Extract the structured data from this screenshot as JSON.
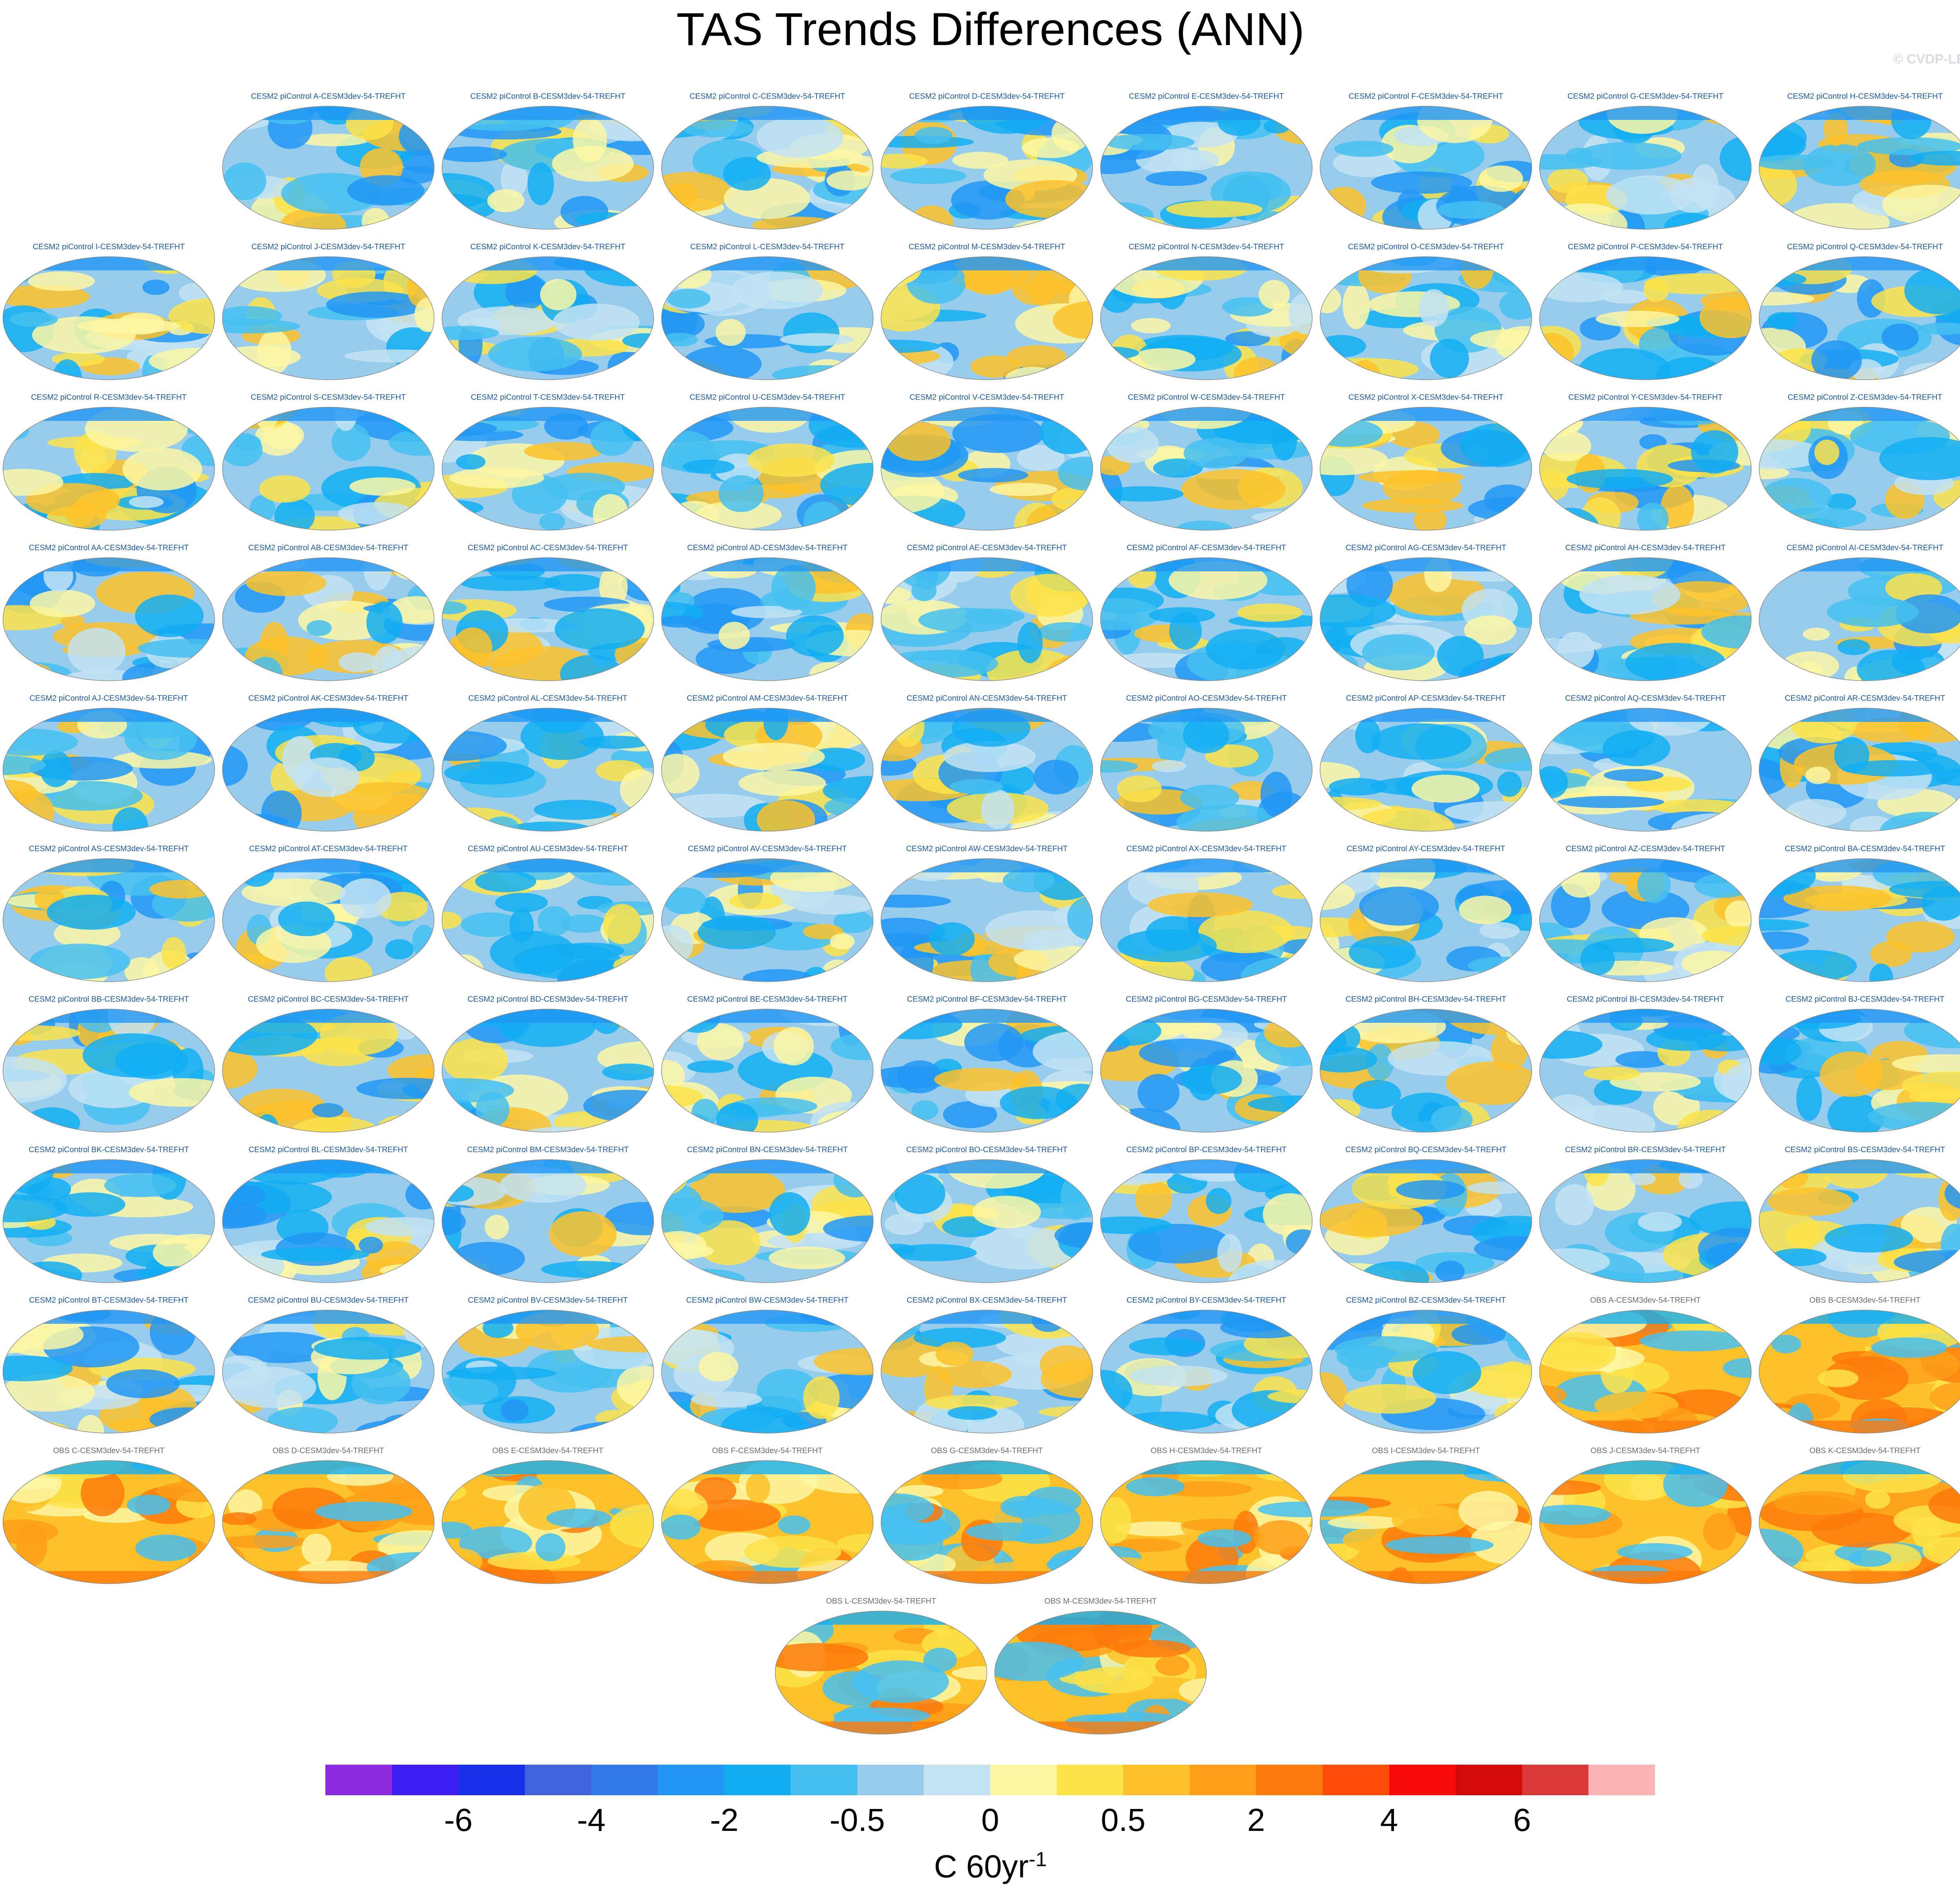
{
  "title": "TAS Trends Differences (ANN)",
  "watermark": "© CVDP-LE",
  "panels": [
    {
      "label": "CESM2 piControl A-CESM3dev-54-TREFHT",
      "kind": "control"
    },
    {
      "label": "CESM2 piControl B-CESM3dev-54-TREFHT",
      "kind": "control"
    },
    {
      "label": "CESM2 piControl C-CESM3dev-54-TREFHT",
      "kind": "control"
    },
    {
      "label": "CESM2 piControl D-CESM3dev-54-TREFHT",
      "kind": "control"
    },
    {
      "label": "CESM2 piControl E-CESM3dev-54-TREFHT",
      "kind": "control"
    },
    {
      "label": "CESM2 piControl F-CESM3dev-54-TREFHT",
      "kind": "control"
    },
    {
      "label": "CESM2 piControl G-CESM3dev-54-TREFHT",
      "kind": "control"
    },
    {
      "label": "CESM2 piControl H-CESM3dev-54-TREFHT",
      "kind": "control"
    },
    {
      "label": "CESM2 piControl I-CESM3dev-54-TREFHT",
      "kind": "control"
    },
    {
      "label": "CESM2 piControl J-CESM3dev-54-TREFHT",
      "kind": "control"
    },
    {
      "label": "CESM2 piControl K-CESM3dev-54-TREFHT",
      "kind": "control"
    },
    {
      "label": "CESM2 piControl L-CESM3dev-54-TREFHT",
      "kind": "control"
    },
    {
      "label": "CESM2 piControl M-CESM3dev-54-TREFHT",
      "kind": "control"
    },
    {
      "label": "CESM2 piControl N-CESM3dev-54-TREFHT",
      "kind": "control"
    },
    {
      "label": "CESM2 piControl O-CESM3dev-54-TREFHT",
      "kind": "control"
    },
    {
      "label": "CESM2 piControl P-CESM3dev-54-TREFHT",
      "kind": "control"
    },
    {
      "label": "CESM2 piControl Q-CESM3dev-54-TREFHT",
      "kind": "control"
    },
    {
      "label": "CESM2 piControl R-CESM3dev-54-TREFHT",
      "kind": "control"
    },
    {
      "label": "CESM2 piControl S-CESM3dev-54-TREFHT",
      "kind": "control"
    },
    {
      "label": "CESM2 piControl T-CESM3dev-54-TREFHT",
      "kind": "control"
    },
    {
      "label": "CESM2 piControl U-CESM3dev-54-TREFHT",
      "kind": "control"
    },
    {
      "label": "CESM2 piControl V-CESM3dev-54-TREFHT",
      "kind": "control"
    },
    {
      "label": "CESM2 piControl W-CESM3dev-54-TREFHT",
      "kind": "control"
    },
    {
      "label": "CESM2 piControl X-CESM3dev-54-TREFHT",
      "kind": "control"
    },
    {
      "label": "CESM2 piControl Y-CESM3dev-54-TREFHT",
      "kind": "control"
    },
    {
      "label": "CESM2 piControl Z-CESM3dev-54-TREFHT",
      "kind": "control"
    },
    {
      "label": "CESM2 piControl AA-CESM3dev-54-TREFHT",
      "kind": "control"
    },
    {
      "label": "CESM2 piControl AB-CESM3dev-54-TREFHT",
      "kind": "control"
    },
    {
      "label": "CESM2 piControl AC-CESM3dev-54-TREFHT",
      "kind": "control"
    },
    {
      "label": "CESM2 piControl AD-CESM3dev-54-TREFHT",
      "kind": "control"
    },
    {
      "label": "CESM2 piControl AE-CESM3dev-54-TREFHT",
      "kind": "control"
    },
    {
      "label": "CESM2 piControl AF-CESM3dev-54-TREFHT",
      "kind": "control"
    },
    {
      "label": "CESM2 piControl AG-CESM3dev-54-TREFHT",
      "kind": "control"
    },
    {
      "label": "CESM2 piControl AH-CESM3dev-54-TREFHT",
      "kind": "control"
    },
    {
      "label": "CESM2 piControl AI-CESM3dev-54-TREFHT",
      "kind": "control"
    },
    {
      "label": "CESM2 piControl AJ-CESM3dev-54-TREFHT",
      "kind": "control"
    },
    {
      "label": "CESM2 piControl AK-CESM3dev-54-TREFHT",
      "kind": "control"
    },
    {
      "label": "CESM2 piControl AL-CESM3dev-54-TREFHT",
      "kind": "control"
    },
    {
      "label": "CESM2 piControl AM-CESM3dev-54-TREFHT",
      "kind": "control"
    },
    {
      "label": "CESM2 piControl AN-CESM3dev-54-TREFHT",
      "kind": "control"
    },
    {
      "label": "CESM2 piControl AO-CESM3dev-54-TREFHT",
      "kind": "control"
    },
    {
      "label": "CESM2 piControl AP-CESM3dev-54-TREFHT",
      "kind": "control"
    },
    {
      "label": "CESM2 piControl AQ-CESM3dev-54-TREFHT",
      "kind": "control"
    },
    {
      "label": "CESM2 piControl AR-CESM3dev-54-TREFHT",
      "kind": "control"
    },
    {
      "label": "CESM2 piControl AS-CESM3dev-54-TREFHT",
      "kind": "control"
    },
    {
      "label": "CESM2 piControl AT-CESM3dev-54-TREFHT",
      "kind": "control"
    },
    {
      "label": "CESM2 piControl AU-CESM3dev-54-TREFHT",
      "kind": "control"
    },
    {
      "label": "CESM2 piControl AV-CESM3dev-54-TREFHT",
      "kind": "control"
    },
    {
      "label": "CESM2 piControl AW-CESM3dev-54-TREFHT",
      "kind": "control"
    },
    {
      "label": "CESM2 piControl AX-CESM3dev-54-TREFHT",
      "kind": "control"
    },
    {
      "label": "CESM2 piControl AY-CESM3dev-54-TREFHT",
      "kind": "control"
    },
    {
      "label": "CESM2 piControl AZ-CESM3dev-54-TREFHT",
      "kind": "control"
    },
    {
      "label": "CESM2 piControl BA-CESM3dev-54-TREFHT",
      "kind": "control"
    },
    {
      "label": "CESM2 piControl BB-CESM3dev-54-TREFHT",
      "kind": "control"
    },
    {
      "label": "CESM2 piControl BC-CESM3dev-54-TREFHT",
      "kind": "control"
    },
    {
      "label": "CESM2 piControl BD-CESM3dev-54-TREFHT",
      "kind": "control"
    },
    {
      "label": "CESM2 piControl BE-CESM3dev-54-TREFHT",
      "kind": "control"
    },
    {
      "label": "CESM2 piControl BF-CESM3dev-54-TREFHT",
      "kind": "control"
    },
    {
      "label": "CESM2 piControl BG-CESM3dev-54-TREFHT",
      "kind": "control"
    },
    {
      "label": "CESM2 piControl BH-CESM3dev-54-TREFHT",
      "kind": "control"
    },
    {
      "label": "CESM2 piControl BI-CESM3dev-54-TREFHT",
      "kind": "control"
    },
    {
      "label": "CESM2 piControl BJ-CESM3dev-54-TREFHT",
      "kind": "control"
    },
    {
      "label": "CESM2 piControl BK-CESM3dev-54-TREFHT",
      "kind": "control"
    },
    {
      "label": "CESM2 piControl BL-CESM3dev-54-TREFHT",
      "kind": "control"
    },
    {
      "label": "CESM2 piControl BM-CESM3dev-54-TREFHT",
      "kind": "control"
    },
    {
      "label": "CESM2 piControl BN-CESM3dev-54-TREFHT",
      "kind": "control"
    },
    {
      "label": "CESM2 piControl BO-CESM3dev-54-TREFHT",
      "kind": "control"
    },
    {
      "label": "CESM2 piControl BP-CESM3dev-54-TREFHT",
      "kind": "control"
    },
    {
      "label": "CESM2 piControl BQ-CESM3dev-54-TREFHT",
      "kind": "control"
    },
    {
      "label": "CESM2 piControl BR-CESM3dev-54-TREFHT",
      "kind": "control"
    },
    {
      "label": "CESM2 piControl BS-CESM3dev-54-TREFHT",
      "kind": "control"
    },
    {
      "label": "CESM2 piControl BT-CESM3dev-54-TREFHT",
      "kind": "control"
    },
    {
      "label": "CESM2 piControl BU-CESM3dev-54-TREFHT",
      "kind": "control"
    },
    {
      "label": "CESM2 piControl BV-CESM3dev-54-TREFHT",
      "kind": "control"
    },
    {
      "label": "CESM2 piControl BW-CESM3dev-54-TREFHT",
      "kind": "control"
    },
    {
      "label": "CESM2 piControl BX-CESM3dev-54-TREFHT",
      "kind": "control"
    },
    {
      "label": "CESM2 piControl BY-CESM3dev-54-TREFHT",
      "kind": "control"
    },
    {
      "label": "CESM2 piControl BZ-CESM3dev-54-TREFHT",
      "kind": "control"
    },
    {
      "label": "OBS A-CESM3dev-54-TREFHT",
      "kind": "obs"
    },
    {
      "label": "OBS B-CESM3dev-54-TREFHT",
      "kind": "obs"
    },
    {
      "label": "OBS C-CESM3dev-54-TREFHT",
      "kind": "obs"
    },
    {
      "label": "OBS D-CESM3dev-54-TREFHT",
      "kind": "obs"
    },
    {
      "label": "OBS E-CESM3dev-54-TREFHT",
      "kind": "obs"
    },
    {
      "label": "OBS F-CESM3dev-54-TREFHT",
      "kind": "obs"
    },
    {
      "label": "OBS G-CESM3dev-54-TREFHT",
      "kind": "obs"
    },
    {
      "label": "OBS H-CESM3dev-54-TREFHT",
      "kind": "obs"
    },
    {
      "label": "OBS I-CESM3dev-54-TREFHT",
      "kind": "obs"
    },
    {
      "label": "OBS J-CESM3dev-54-TREFHT",
      "kind": "obs"
    },
    {
      "label": "OBS K-CESM3dev-54-TREFHT",
      "kind": "obs"
    },
    {
      "label": "OBS L-CESM3dev-54-TREFHT",
      "kind": "obs"
    },
    {
      "label": "OBS M-CESM3dev-54-TREFHT",
      "kind": "obs"
    }
  ],
  "colorbar": {
    "colors": [
      "#8a2be2",
      "#3d1ef5",
      "#1a2fe8",
      "#3f63dc",
      "#3479ea",
      "#2196f5",
      "#12aef2",
      "#45bff0",
      "#98cced",
      "#c3e3f3",
      "#fdf7a4",
      "#fde34a",
      "#fdc22a",
      "#fd9f17",
      "#fd7a0c",
      "#fd4b0a",
      "#fb0a0a",
      "#d40a0a",
      "#d83838",
      "#fdb4b4"
    ],
    "tick_labels": [
      "-6",
      "-4",
      "-2",
      "-0.5",
      "0",
      "0.5",
      "2",
      "4",
      "6"
    ],
    "tick_boundary_index": [
      2,
      4,
      6,
      8,
      10,
      12,
      14,
      16,
      18
    ],
    "units": "C 60yr",
    "units_exponent": "-1"
  }
}
